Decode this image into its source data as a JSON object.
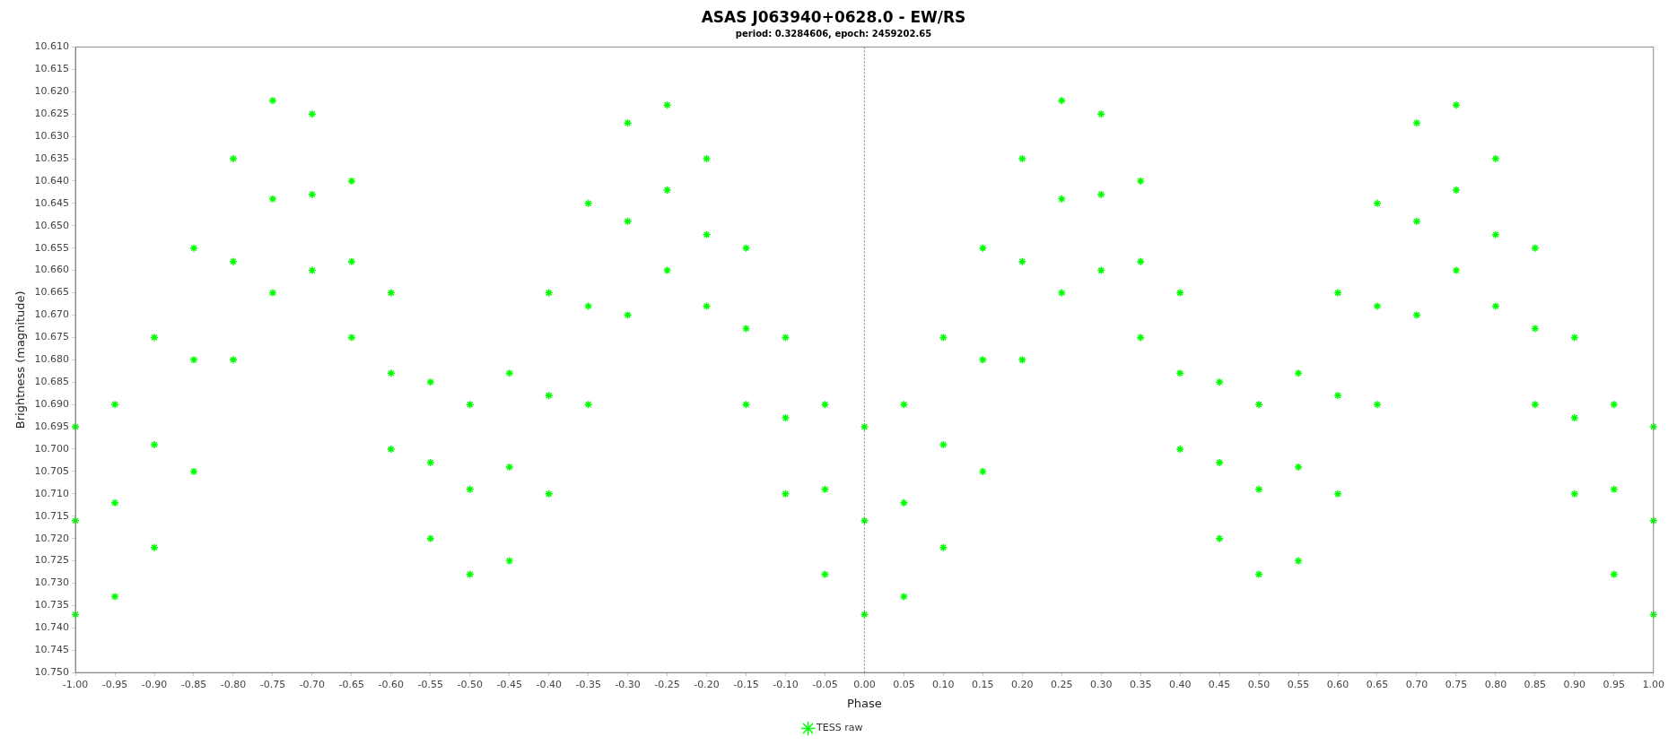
{
  "chart_data": {
    "type": "scatter",
    "title": "ASAS J063940+0628.0 - EW/RS",
    "subtitle": "period: 0.3284606, epoch: 2459202.65",
    "xlabel": "Phase",
    "ylabel": "Brightness (magnitude)",
    "marker": "cross",
    "grid": false,
    "legend": "bottom",
    "xlim": [
      -1.0,
      1.0
    ],
    "xticks": [
      {
        "value": -1.0,
        "label": "-1.00"
      },
      {
        "value": -0.95,
        "label": "-0.95"
      },
      {
        "value": -0.9,
        "label": "-0.90"
      },
      {
        "value": -0.85,
        "label": "-0.85"
      },
      {
        "value": -0.8,
        "label": "-0.80"
      },
      {
        "value": -0.75,
        "label": "-0.75"
      },
      {
        "value": -0.7,
        "label": "-0.70"
      },
      {
        "value": -0.65,
        "label": "-0.65"
      },
      {
        "value": -0.6,
        "label": "-0.60"
      },
      {
        "value": -0.55,
        "label": "-0.55"
      },
      {
        "value": -0.5,
        "label": "-0.50"
      },
      {
        "value": -0.45,
        "label": "-0.45"
      },
      {
        "value": -0.4,
        "label": "-0.40"
      },
      {
        "value": -0.35,
        "label": "-0.35"
      },
      {
        "value": -0.3,
        "label": "-0.30"
      },
      {
        "value": -0.25,
        "label": "-0.25"
      },
      {
        "value": -0.2,
        "label": "-0.20"
      },
      {
        "value": -0.15,
        "label": "-0.15"
      },
      {
        "value": -0.1,
        "label": "-0.10"
      },
      {
        "value": -0.05,
        "label": "-0.05"
      },
      {
        "value": 0,
        "label": "0.00"
      },
      {
        "value": 0.05,
        "label": "0.05"
      },
      {
        "value": 0.1,
        "label": "0.10"
      },
      {
        "value": 0.15,
        "label": "0.15"
      },
      {
        "value": 0.2,
        "label": "0.20"
      },
      {
        "value": 0.25,
        "label": "0.25"
      },
      {
        "value": 0.3,
        "label": "0.30"
      },
      {
        "value": 0.35,
        "label": "0.35"
      },
      {
        "value": 0.4,
        "label": "0.40"
      },
      {
        "value": 0.45,
        "label": "0.45"
      },
      {
        "value": 0.5,
        "label": "0.50"
      },
      {
        "value": 0.55,
        "label": "0.55"
      },
      {
        "value": 0.6,
        "label": "0.60"
      },
      {
        "value": 0.65,
        "label": "0.65"
      },
      {
        "value": 0.7,
        "label": "0.70"
      },
      {
        "value": 0.75,
        "label": "0.75"
      },
      {
        "value": 0.8,
        "label": "0.80"
      },
      {
        "value": 0.85,
        "label": "0.85"
      },
      {
        "value": 0.9,
        "label": "0.90"
      },
      {
        "value": 0.95,
        "label": "0.95"
      },
      {
        "value": 1.0,
        "label": "1.00"
      }
    ],
    "ylim": [
      10.75,
      10.61
    ],
    "yticks": [
      {
        "value": 10.61,
        "label": "10.610"
      },
      {
        "value": 10.615,
        "label": "10.615"
      },
      {
        "value": 10.62,
        "label": "10.620"
      },
      {
        "value": 10.625,
        "label": "10.625"
      },
      {
        "value": 10.63,
        "label": "10.630"
      },
      {
        "value": 10.635,
        "label": "10.635"
      },
      {
        "value": 10.64,
        "label": "10.640"
      },
      {
        "value": 10.645,
        "label": "10.645"
      },
      {
        "value": 10.65,
        "label": "10.650"
      },
      {
        "value": 10.655,
        "label": "10.655"
      },
      {
        "value": 10.66,
        "label": "10.660"
      },
      {
        "value": 10.665,
        "label": "10.665"
      },
      {
        "value": 10.67,
        "label": "10.670"
      },
      {
        "value": 10.675,
        "label": "10.675"
      },
      {
        "value": 10.68,
        "label": "10.680"
      },
      {
        "value": 10.685,
        "label": "10.685"
      },
      {
        "value": 10.69,
        "label": "10.690"
      },
      {
        "value": 10.695,
        "label": "10.695"
      },
      {
        "value": 10.7,
        "label": "10.700"
      },
      {
        "value": 10.705,
        "label": "10.705"
      },
      {
        "value": 10.71,
        "label": "10.710"
      },
      {
        "value": 10.715,
        "label": "10.715"
      },
      {
        "value": 10.72,
        "label": "10.720"
      },
      {
        "value": 10.725,
        "label": "10.725"
      },
      {
        "value": 10.73,
        "label": "10.730"
      },
      {
        "value": 10.735,
        "label": "10.735"
      },
      {
        "value": 10.74,
        "label": "10.740"
      },
      {
        "value": 10.745,
        "label": "10.745"
      },
      {
        "value": 10.75,
        "label": "10.750"
      }
    ],
    "ref_lines": [
      {
        "axis": "x",
        "value": 0,
        "color": "#808080",
        "line_style": "dotted"
      }
    ],
    "series": [
      {
        "name": "TESS raw",
        "color": "#00ff00",
        "x": [
          -1,
          -1,
          -1,
          -0.95,
          -0.95,
          -0.95,
          -0.9,
          -0.9,
          -0.9,
          -0.85,
          -0.85,
          -0.85,
          -0.8,
          -0.8,
          -0.8,
          -0.75,
          -0.75,
          -0.75,
          -0.7,
          -0.7,
          -0.7,
          -0.65,
          -0.65,
          -0.65,
          -0.6,
          -0.6,
          -0.6,
          -0.55,
          -0.55,
          -0.55,
          -0.5,
          -0.5,
          -0.5,
          -0.45,
          -0.45,
          -0.45,
          -0.4,
          -0.4,
          -0.4,
          -0.35,
          -0.35,
          -0.35,
          -0.3,
          -0.3,
          -0.3,
          -0.25,
          -0.25,
          -0.25,
          -0.2,
          -0.2,
          -0.2,
          -0.15,
          -0.15,
          -0.15,
          -0.1,
          -0.1,
          -0.1,
          -0.05,
          -0.05,
          -0.05,
          0,
          0,
          0,
          0.05,
          0.05,
          0.05,
          0.1,
          0.1,
          0.1,
          0.15,
          0.15,
          0.15,
          0.2,
          0.2,
          0.2,
          0.25,
          0.25,
          0.25,
          0.3,
          0.3,
          0.3,
          0.35,
          0.35,
          0.35,
          0.4,
          0.4,
          0.4,
          0.45,
          0.45,
          0.45,
          0.5,
          0.5,
          0.5,
          0.55,
          0.55,
          0.55,
          0.6,
          0.6,
          0.6,
          0.65,
          0.65,
          0.65,
          0.7,
          0.7,
          0.7,
          0.75,
          0.75,
          0.75,
          0.8,
          0.8,
          0.8,
          0.85,
          0.85,
          0.85,
          0.9,
          0.9,
          0.9,
          0.95,
          0.95,
          0.95,
          1,
          1,
          1
        ],
        "values": [
          10.695,
          10.716,
          10.737,
          10.69,
          10.712,
          10.733,
          10.675,
          10.699,
          10.722,
          10.655,
          10.68,
          10.705,
          10.635,
          10.658,
          10.68,
          10.622,
          10.644,
          10.665,
          10.625,
          10.643,
          10.66,
          10.64,
          10.658,
          10.675,
          10.665,
          10.683,
          10.7,
          10.685,
          10.703,
          10.72,
          10.69,
          10.709,
          10.728,
          10.683,
          10.704,
          10.725,
          10.665,
          10.688,
          10.71,
          10.645,
          10.668,
          10.69,
          10.627,
          10.649,
          10.67,
          10.623,
          10.642,
          10.66,
          10.635,
          10.652,
          10.668,
          10.655,
          10.673,
          10.69,
          10.675,
          10.693,
          10.71,
          10.69,
          10.709,
          10.728,
          10.695,
          10.716,
          10.737,
          10.69,
          10.712,
          10.733,
          10.675,
          10.699,
          10.722,
          10.655,
          10.68,
          10.705,
          10.635,
          10.658,
          10.68,
          10.622,
          10.644,
          10.665,
          10.625,
          10.643,
          10.66,
          10.64,
          10.658,
          10.675,
          10.665,
          10.683,
          10.7,
          10.685,
          10.703,
          10.72,
          10.69,
          10.709,
          10.728,
          10.683,
          10.704,
          10.725,
          10.665,
          10.688,
          10.71,
          10.645,
          10.668,
          10.69,
          10.627,
          10.649,
          10.67,
          10.623,
          10.642,
          10.66,
          10.635,
          10.652,
          10.668,
          10.655,
          10.673,
          10.69,
          10.675,
          10.693,
          10.71,
          10.69,
          10.709,
          10.728,
          10.695,
          10.716,
          10.737
        ]
      }
    ]
  }
}
